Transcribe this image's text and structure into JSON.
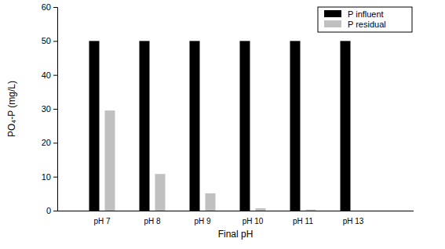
{
  "chart_data": {
    "type": "bar",
    "x_label": "Final pH",
    "y_label": "PO₄-P (mg/L)",
    "categories": [
      "pH 7",
      "pH 8",
      "pH 9",
      "pH 10",
      "pH 11",
      "pH 13"
    ],
    "series": [
      {
        "name": "P influent",
        "color": "#000000",
        "values": [
          50,
          50,
          50,
          50,
          50,
          50
        ]
      },
      {
        "name": "P residual",
        "color": "#c0c0c0",
        "values": [
          29.5,
          10.8,
          5.1,
          0.7,
          0.3,
          0
        ]
      }
    ],
    "ylim": [
      0,
      60
    ],
    "yticks": [
      0,
      10,
      20,
      30,
      40,
      50,
      60
    ],
    "legend": "top-right",
    "grid": false
  }
}
